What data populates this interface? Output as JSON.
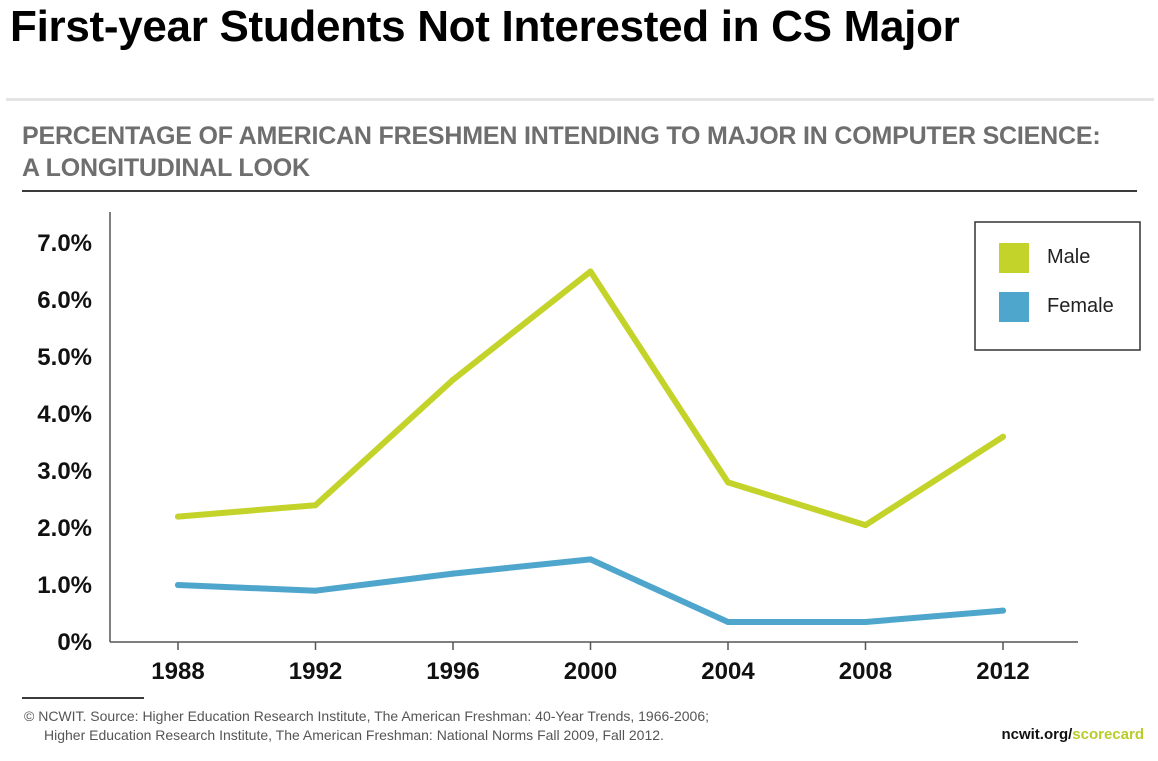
{
  "slide": {
    "title": "First-year Students Not Interested in CS Major"
  },
  "chart_data": {
    "type": "line",
    "title": "PERCENTAGE OF AMERICAN FRESHMEN INTENDING TO MAJOR IN COMPUTER SCIENCE:",
    "subtitle": "A LONGITUDINAL LOOK",
    "xlabel": "",
    "ylabel": "",
    "x": [
      1988,
      1992,
      1996,
      2000,
      2004,
      2008,
      2012
    ],
    "x_tick_labels": [
      "1988",
      "1992",
      "1996",
      "2000",
      "2004",
      "2008",
      "2012"
    ],
    "y_tick_labels": [
      "0%",
      "1.0%",
      "2.0%",
      "3.0%",
      "4.0%",
      "5.0%",
      "6.0%",
      "7.0%"
    ],
    "ylim": [
      0,
      7.0
    ],
    "grid": false,
    "legend_position": "top-right",
    "series": [
      {
        "name": "Male",
        "color": "#c3d32a",
        "x": [
          1988,
          1992,
          1996,
          2000,
          2004,
          2008,
          2012
        ],
        "values": [
          2.2,
          2.4,
          4.6,
          6.5,
          2.8,
          2.05,
          3.6
        ]
      },
      {
        "name": "Female",
        "color": "#4fa6cc",
        "x": [
          1988,
          1992,
          1996,
          2000,
          2004,
          2008,
          2012
        ],
        "values": [
          1.0,
          0.9,
          1.2,
          1.45,
          0.35,
          0.35,
          0.55
        ]
      }
    ]
  },
  "footer": {
    "source_line1": "© NCWIT. Source: Higher Education Research Institute, The American Freshman: 40-Year Trends, 1966-2006;",
    "source_line2": "Higher Education Research Institute, The American Freshman: National Norms Fall 2009, Fall 2012.",
    "site_prefix": "ncwit.org/",
    "site_suffix": "scorecard"
  }
}
